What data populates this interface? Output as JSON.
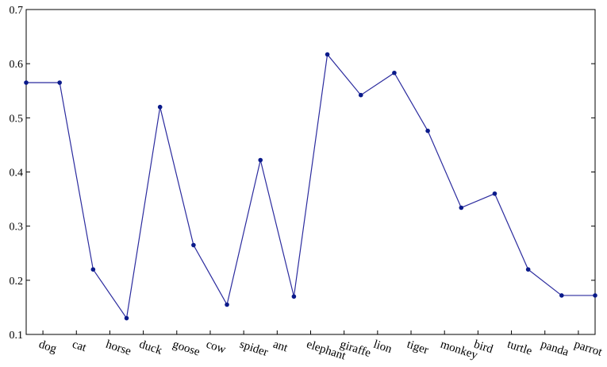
{
  "chart_data": {
    "type": "line",
    "title": "",
    "xlabel": "",
    "ylabel": "",
    "ylim": [
      0.1,
      0.7
    ],
    "yticks": [
      0.1,
      0.2,
      0.3,
      0.4,
      0.5,
      0.6,
      0.7
    ],
    "ytick_labels": [
      "0.1",
      "0.2",
      "0.3",
      "0.4",
      "0.5",
      "0.6",
      "0.7"
    ],
    "grid": false,
    "x": [
      0,
      1,
      2,
      3,
      4,
      5,
      6,
      7,
      8,
      9,
      10,
      11,
      12,
      13,
      14,
      15,
      16,
      17
    ],
    "xlim": [
      0,
      17
    ],
    "categories": [
      "dog",
      "cat",
      "horse",
      "duck",
      "goose",
      "cow",
      "spider",
      "ant",
      "elephant",
      "giraffe",
      "lion",
      "tiger",
      "monkey",
      "bird",
      "turtle",
      "panda",
      "parrot"
    ],
    "category_ticks": [
      0.5,
      1.5,
      2.5,
      3.5,
      4.5,
      5.5,
      6.5,
      7.5,
      8.5,
      9.5,
      10.5,
      11.5,
      12.5,
      13.5,
      14.5,
      15.5,
      16.5
    ],
    "series": [
      {
        "values": [
          0.565,
          0.565,
          0.22,
          0.13,
          0.52,
          0.265,
          0.155,
          0.422,
          0.17,
          0.617,
          0.542,
          0.583,
          0.476,
          0.334,
          0.36,
          0.22,
          0.172,
          0.172
        ],
        "color": "#2b2b9e",
        "marker_color": "#0a1a8a"
      }
    ]
  }
}
